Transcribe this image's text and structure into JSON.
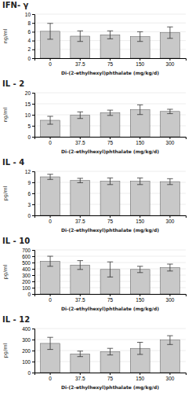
{
  "chart_data": [
    {
      "type": "bar",
      "title": "IFN- γ",
      "ylabel": "ng/ml",
      "xlabel": "Di-(2-ethylhexyl)phthalate (mg/kg/d)",
      "categories": [
        "0",
        "37.5",
        "75",
        "150",
        "300"
      ],
      "values": [
        6.1,
        5.0,
        5.3,
        4.9,
        5.8
      ],
      "errors": [
        1.8,
        1.2,
        0.9,
        1.1,
        1.3
      ],
      "ylim": [
        0,
        10
      ],
      "yticks": [
        0,
        2,
        4,
        6,
        8,
        10
      ],
      "grid": true,
      "color": "#c8c8c8"
    },
    {
      "type": "bar",
      "title": "IL - 2",
      "ylabel": "ng/ml",
      "xlabel": "Di-(2-ethylhexyl)phthalate (mg/kg/d)",
      "categories": [
        "0",
        "37.5",
        "75",
        "150",
        "300"
      ],
      "values": [
        7.5,
        9.8,
        10.9,
        12.3,
        11.5
      ],
      "errors": [
        1.8,
        1.5,
        1.2,
        2.2,
        1.0
      ],
      "ylim": [
        0,
        20
      ],
      "yticks": [
        0,
        5,
        10,
        15,
        20
      ],
      "grid": true,
      "color": "#c8c8c8"
    },
    {
      "type": "bar",
      "title": "IL - 4",
      "ylabel": "pg/ml",
      "xlabel": "Di-(2-ethylhexyl)phthalate (mg/kg/d)",
      "categories": [
        "0",
        "37.5",
        "75",
        "150",
        "300"
      ],
      "values": [
        10.5,
        9.5,
        9.3,
        9.3,
        9.2
      ],
      "errors": [
        0.7,
        0.6,
        0.9,
        0.9,
        0.8
      ],
      "ylim": [
        0,
        12
      ],
      "yticks": [
        0,
        3,
        6,
        9,
        12
      ],
      "grid": true,
      "color": "#c8c8c8"
    },
    {
      "type": "bar",
      "title": "IL - 10",
      "ylabel": "pg/ml",
      "xlabel": "Di-(2-ethylhexyl)phthalate (mg/kg/d)",
      "categories": [
        "0",
        "37.5",
        "75",
        "150",
        "300"
      ],
      "values": [
        520,
        460,
        390,
        390,
        420
      ],
      "errors": [
        80,
        70,
        120,
        50,
        55
      ],
      "ylim": [
        0,
        700
      ],
      "yticks": [
        0,
        100,
        200,
        300,
        400,
        500,
        600,
        700
      ],
      "grid": true,
      "color": "#c8c8c8"
    },
    {
      "type": "bar",
      "title": "IL - 12",
      "ylabel": "pg/ml",
      "xlabel": "Di-(2-ethylhexyl)phthalate (mg/kg/d)",
      "categories": [
        "0",
        "37.5",
        "75",
        "150",
        "300"
      ],
      "values": [
        265,
        170,
        190,
        220,
        295
      ],
      "errors": [
        55,
        25,
        30,
        55,
        40
      ],
      "ylim": [
        0,
        400
      ],
      "yticks": [
        0,
        100,
        200,
        300,
        400
      ],
      "grid": true,
      "color": "#c8c8c8"
    }
  ]
}
